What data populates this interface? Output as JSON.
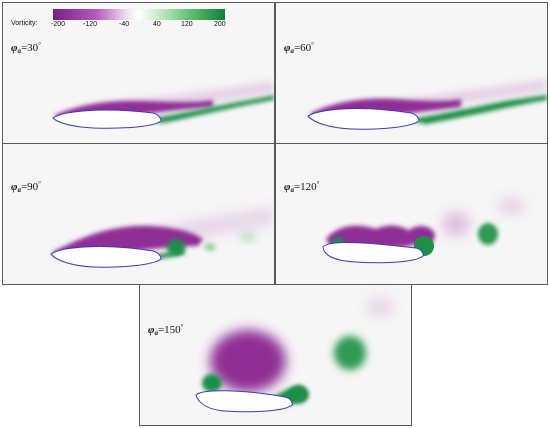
{
  "colorbar": {
    "title": "Vorticity:",
    "ticks": [
      "-200",
      "-120",
      "-40",
      "40",
      "120",
      "200"
    ],
    "colors": {
      "negative": "#7a1f86",
      "positive": "#0f7f3a",
      "airfoil": "#3b3bb8"
    }
  },
  "panels": [
    {
      "symbol": "φ",
      "subscript": "a",
      "value": "=30",
      "unit": "°"
    },
    {
      "symbol": "φ",
      "subscript": "a",
      "value": "=60",
      "unit": "°"
    },
    {
      "symbol": "φ",
      "subscript": "a",
      "value": "=90",
      "unit": "°"
    },
    {
      "symbol": "φ",
      "subscript": "a",
      "value": "=120",
      "unit": "°"
    },
    {
      "symbol": "φ",
      "subscript": "a",
      "value": "=150",
      "unit": "°"
    }
  ]
}
